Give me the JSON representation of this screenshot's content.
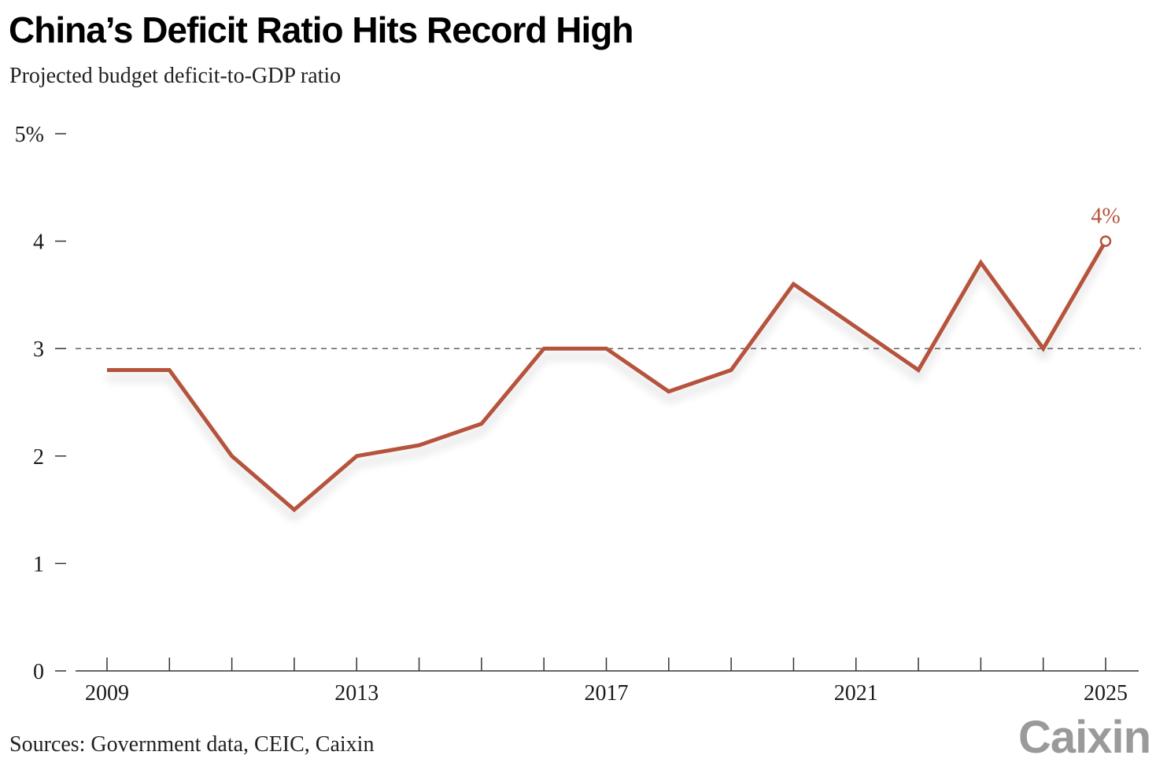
{
  "header": {
    "title": "China’s Deficit Ratio Hits Record High",
    "subtitle": "Projected budget deficit-to-GDP ratio"
  },
  "footer": {
    "source": "Sources: Government data, CEIC, Caixin",
    "logo_text": "Caixin"
  },
  "colors": {
    "line": "#b5533c",
    "axis": "#333333",
    "text": "#1a1a1a",
    "reference_line": "#555555",
    "logo": "#9a9a9a"
  },
  "chart_data": {
    "type": "line",
    "title": "China’s Deficit Ratio Hits Record High",
    "subtitle": "Projected budget deficit-to-GDP ratio",
    "xlabel": "",
    "ylabel": "",
    "x": [
      2009,
      2010,
      2011,
      2012,
      2013,
      2014,
      2015,
      2016,
      2017,
      2018,
      2019,
      2020,
      2021,
      2022,
      2023,
      2024,
      2025
    ],
    "series": [
      {
        "values": [
          2.8,
          2.8,
          2.0,
          1.5,
          2.0,
          2.1,
          2.3,
          3.0,
          3.0,
          2.6,
          2.8,
          3.6,
          3.2,
          2.8,
          3.8,
          3.0,
          4.0
        ]
      }
    ],
    "xlim": [
      2009,
      2025
    ],
    "ylim": [
      0,
      5
    ],
    "x_tick_labels": [
      "2009",
      "2013",
      "2017",
      "2021",
      "2025"
    ],
    "x_tick_label_years": [
      2009,
      2013,
      2017,
      2021,
      2025
    ],
    "y_ticks": [
      0,
      1,
      2,
      3,
      4,
      5
    ],
    "y_tick_labels": [
      "0",
      "1",
      "2",
      "3",
      "4",
      "5%"
    ],
    "reference_line": 3,
    "end_label": "4%",
    "grid": false,
    "legend": "none"
  }
}
